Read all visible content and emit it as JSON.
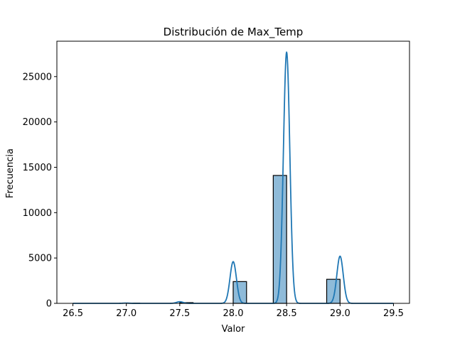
{
  "chart_data": {
    "type": "bar",
    "title": "Distribución de Max_Temp",
    "xlabel": "Valor",
    "ylabel": "Frecuencia",
    "xlim": [
      26.35,
      29.65
    ],
    "ylim": [
      0,
      28900
    ],
    "grid": false,
    "x_ticks": [
      "26.5",
      "27.0",
      "27.5",
      "28.0",
      "28.5",
      "29.0",
      "29.5"
    ],
    "y_ticks": [
      "0",
      "5000",
      "10000",
      "15000",
      "20000",
      "25000"
    ],
    "bins": [
      {
        "x0": 26.5,
        "x1": 26.625,
        "value": 0
      },
      {
        "x0": 26.625,
        "x1": 26.75,
        "value": 0
      },
      {
        "x0": 26.75,
        "x1": 26.875,
        "value": 0
      },
      {
        "x0": 26.875,
        "x1": 27.0,
        "value": 0
      },
      {
        "x0": 27.0,
        "x1": 27.125,
        "value": 30
      },
      {
        "x0": 27.125,
        "x1": 27.25,
        "value": 0
      },
      {
        "x0": 27.25,
        "x1": 27.375,
        "value": 0
      },
      {
        "x0": 27.375,
        "x1": 27.5,
        "value": 0
      },
      {
        "x0": 27.5,
        "x1": 27.625,
        "value": 80
      },
      {
        "x0": 27.625,
        "x1": 27.75,
        "value": 0
      },
      {
        "x0": 27.75,
        "x1": 27.875,
        "value": 0
      },
      {
        "x0": 27.875,
        "x1": 28.0,
        "value": 0
      },
      {
        "x0": 28.0,
        "x1": 28.125,
        "value": 2400
      },
      {
        "x0": 28.125,
        "x1": 28.25,
        "value": 0
      },
      {
        "x0": 28.25,
        "x1": 28.375,
        "value": 0
      },
      {
        "x0": 28.375,
        "x1": 28.5,
        "value": 14100
      },
      {
        "x0": 28.5,
        "x1": 28.625,
        "value": 0
      },
      {
        "x0": 28.625,
        "x1": 28.75,
        "value": 0
      },
      {
        "x0": 28.75,
        "x1": 28.875,
        "value": 0
      },
      {
        "x0": 28.875,
        "x1": 29.0,
        "value": 2650
      },
      {
        "x0": 29.0,
        "x1": 29.125,
        "value": 0
      },
      {
        "x0": 29.125,
        "x1": 29.25,
        "value": 0
      },
      {
        "x0": 29.25,
        "x1": 29.375,
        "value": 0
      },
      {
        "x0": 29.375,
        "x1": 29.5,
        "value": 0
      }
    ],
    "kde_peaks": [
      {
        "x": 27.0,
        "y": 30
      },
      {
        "x": 27.5,
        "y": 180
      },
      {
        "x": 28.0,
        "y": 4600
      },
      {
        "x": 28.5,
        "y": 27700
      },
      {
        "x": 29.0,
        "y": 5200
      }
    ],
    "colors": {
      "bar_fill": "#1f77b4",
      "bar_alpha": "0.5",
      "bar_edge": "#000000",
      "kde_line": "#1f77b4"
    }
  }
}
